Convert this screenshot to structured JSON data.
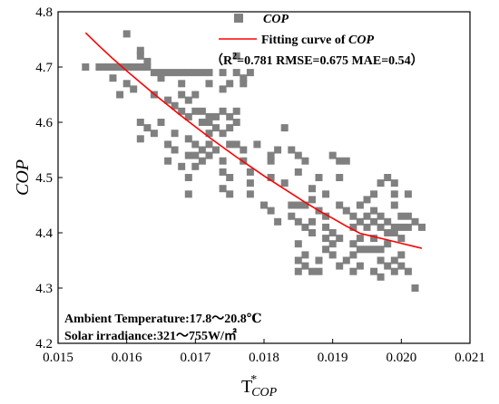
{
  "chart_data": {
    "type": "scatter",
    "xlim": [
      0.015,
      0.021
    ],
    "ylim": [
      4.2,
      4.8
    ],
    "xticks": [
      "0.015",
      "0.016",
      "0.017",
      "0.018",
      "0.019",
      "0.020",
      "0.021"
    ],
    "yticks": [
      "4.2",
      "4.3",
      "4.4",
      "4.5",
      "4.6",
      "4.7",
      "4.8"
    ],
    "xtick_values": [
      0.015,
      0.016,
      0.017,
      0.018,
      0.019,
      0.02,
      0.021
    ],
    "ytick_values": [
      4.2,
      4.3,
      4.4,
      4.5,
      4.6,
      4.7,
      4.8
    ],
    "ylabel": "COP",
    "xlabel": {
      "main": "T",
      "sup": "*",
      "sub": "COP"
    },
    "grid": false,
    "legend": {
      "position": "top-right",
      "scatter_label": "COP",
      "fit_label_prefix": "Fitting curve of ",
      "fit_label_italic": "COP",
      "metrics": {
        "open": "（R",
        "sup": "2",
        "rest": "=0.781  RMSE=0.675 MAE=0.54）"
      }
    },
    "annotations": [
      "Ambient Temperature:17.8～20.8℃",
      "Solar irradiance:321～755W/㎡"
    ],
    "colors": {
      "points": "#808080",
      "curve": "#ff0000"
    },
    "series": [
      {
        "name": "COP",
        "kind": "scatter",
        "points": [
          [
            0.0154,
            4.7
          ],
          [
            0.0156,
            4.7
          ],
          [
            0.0157,
            4.7
          ],
          [
            0.0158,
            4.7
          ],
          [
            0.0159,
            4.7
          ],
          [
            0.016,
            4.7
          ],
          [
            0.0161,
            4.7
          ],
          [
            0.0162,
            4.7
          ],
          [
            0.0163,
            4.7
          ],
          [
            0.0164,
            4.69
          ],
          [
            0.0165,
            4.69
          ],
          [
            0.0166,
            4.69
          ],
          [
            0.0167,
            4.69
          ],
          [
            0.0168,
            4.69
          ],
          [
            0.0169,
            4.69
          ],
          [
            0.017,
            4.69
          ],
          [
            0.0171,
            4.69
          ],
          [
            0.0172,
            4.69
          ],
          [
            0.0174,
            4.69
          ],
          [
            0.0176,
            4.69
          ],
          [
            0.0178,
            4.69
          ],
          [
            0.016,
            4.76
          ],
          [
            0.0162,
            4.73
          ],
          [
            0.0162,
            4.72
          ],
          [
            0.0163,
            4.71
          ],
          [
            0.0158,
            4.68
          ],
          [
            0.016,
            4.67
          ],
          [
            0.0161,
            4.66
          ],
          [
            0.0159,
            4.65
          ],
          [
            0.0165,
            4.68
          ],
          [
            0.0168,
            4.67
          ],
          [
            0.0176,
            4.72
          ],
          [
            0.0177,
            4.68
          ],
          [
            0.0177,
            4.67
          ],
          [
            0.0175,
            4.67
          ],
          [
            0.0172,
            4.67
          ],
          [
            0.0174,
            4.66
          ],
          [
            0.0164,
            4.65
          ],
          [
            0.0166,
            4.64
          ],
          [
            0.0168,
            4.65
          ],
          [
            0.0169,
            4.64
          ],
          [
            0.017,
            4.65
          ],
          [
            0.0167,
            4.63
          ],
          [
            0.0168,
            4.62
          ],
          [
            0.017,
            4.62
          ],
          [
            0.0171,
            4.62
          ],
          [
            0.0172,
            4.61
          ],
          [
            0.0173,
            4.61
          ],
          [
            0.0174,
            4.62
          ],
          [
            0.0175,
            4.61
          ],
          [
            0.0176,
            4.62
          ],
          [
            0.0176,
            4.6
          ],
          [
            0.0175,
            4.59
          ],
          [
            0.0172,
            4.6
          ],
          [
            0.0173,
            4.59
          ],
          [
            0.0169,
            4.61
          ],
          [
            0.0171,
            4.6
          ],
          [
            0.0172,
            4.58
          ],
          [
            0.0174,
            4.58
          ],
          [
            0.0162,
            4.6
          ],
          [
            0.0163,
            4.59
          ],
          [
            0.0165,
            4.6
          ],
          [
            0.0164,
            4.58
          ],
          [
            0.0162,
            4.57
          ],
          [
            0.0167,
            4.58
          ],
          [
            0.0169,
            4.57
          ],
          [
            0.017,
            4.56
          ],
          [
            0.0171,
            4.55
          ],
          [
            0.0172,
            4.56
          ],
          [
            0.0173,
            4.55
          ],
          [
            0.0169,
            4.54
          ],
          [
            0.017,
            4.54
          ],
          [
            0.0171,
            4.53
          ],
          [
            0.0172,
            4.54
          ],
          [
            0.017,
            4.52
          ],
          [
            0.0166,
            4.56
          ],
          [
            0.0166,
            4.53
          ],
          [
            0.0167,
            4.55
          ],
          [
            0.0168,
            4.52
          ],
          [
            0.0169,
            4.5
          ],
          [
            0.0169,
            4.47
          ],
          [
            0.0174,
            4.53
          ],
          [
            0.0175,
            4.56
          ],
          [
            0.0176,
            4.56
          ],
          [
            0.0177,
            4.55
          ],
          [
            0.0177,
            4.53
          ],
          [
            0.0174,
            4.51
          ],
          [
            0.0174,
            4.48
          ],
          [
            0.0175,
            4.47
          ],
          [
            0.0175,
            4.5
          ],
          [
            0.0178,
            4.51
          ],
          [
            0.0178,
            4.49
          ],
          [
            0.0178,
            4.47
          ],
          [
            0.0179,
            4.56
          ],
          [
            0.0181,
            4.54
          ],
          [
            0.0181,
            4.53
          ],
          [
            0.0182,
            4.55
          ],
          [
            0.0183,
            4.59
          ],
          [
            0.0184,
            4.55
          ],
          [
            0.0185,
            4.54
          ],
          [
            0.0181,
            4.5
          ],
          [
            0.0183,
            4.49
          ],
          [
            0.0185,
            4.51
          ],
          [
            0.0186,
            4.53
          ],
          [
            0.0184,
            4.45
          ],
          [
            0.0185,
            4.45
          ],
          [
            0.018,
            4.45
          ],
          [
            0.0181,
            4.44
          ],
          [
            0.0182,
            4.42
          ],
          [
            0.0184,
            4.43
          ],
          [
            0.0185,
            4.42
          ],
          [
            0.0186,
            4.41
          ],
          [
            0.0187,
            4.42
          ],
          [
            0.0187,
            4.4
          ],
          [
            0.0188,
            4.44
          ],
          [
            0.0186,
            4.45
          ],
          [
            0.0187,
            4.46
          ],
          [
            0.0187,
            4.48
          ],
          [
            0.0188,
            4.5
          ],
          [
            0.0189,
            4.47
          ],
          [
            0.019,
            4.54
          ],
          [
            0.0191,
            4.53
          ],
          [
            0.0191,
            4.5
          ],
          [
            0.0192,
            4.53
          ],
          [
            0.0191,
            4.45
          ],
          [
            0.0192,
            4.44
          ],
          [
            0.0193,
            4.43
          ],
          [
            0.0193,
            4.41
          ],
          [
            0.0194,
            4.42
          ],
          [
            0.0195,
            4.43
          ],
          [
            0.0196,
            4.44
          ],
          [
            0.0196,
            4.42
          ],
          [
            0.0197,
            4.43
          ],
          [
            0.0197,
            4.41
          ],
          [
            0.0198,
            4.42
          ],
          [
            0.0199,
            4.41
          ],
          [
            0.0198,
            4.4
          ],
          [
            0.0199,
            4.4
          ],
          [
            0.02,
            4.41
          ],
          [
            0.02,
            4.39
          ],
          [
            0.0201,
            4.43
          ],
          [
            0.0201,
            4.41
          ],
          [
            0.0202,
            4.42
          ],
          [
            0.0203,
            4.41
          ],
          [
            0.0189,
            4.43
          ],
          [
            0.0189,
            4.41
          ],
          [
            0.0189,
            4.39
          ],
          [
            0.019,
            4.4
          ],
          [
            0.019,
            4.38
          ],
          [
            0.0191,
            4.39
          ],
          [
            0.0193,
            4.38
          ],
          [
            0.0194,
            4.37
          ],
          [
            0.0195,
            4.37
          ],
          [
            0.0196,
            4.37
          ],
          [
            0.0197,
            4.37
          ],
          [
            0.0198,
            4.38
          ],
          [
            0.0196,
            4.39
          ],
          [
            0.0193,
            4.36
          ],
          [
            0.0194,
            4.39
          ],
          [
            0.0195,
            4.41
          ],
          [
            0.0197,
            4.49
          ],
          [
            0.0198,
            4.5
          ],
          [
            0.0199,
            4.49
          ],
          [
            0.0199,
            4.47
          ],
          [
            0.0196,
            4.47
          ],
          [
            0.0195,
            4.46
          ],
          [
            0.0201,
            4.47
          ],
          [
            0.0199,
            4.45
          ],
          [
            0.02,
            4.43
          ],
          [
            0.0194,
            4.45
          ],
          [
            0.0185,
            4.38
          ],
          [
            0.0186,
            4.36
          ],
          [
            0.0185,
            4.35
          ],
          [
            0.0186,
            4.34
          ],
          [
            0.0187,
            4.33
          ],
          [
            0.0185,
            4.33
          ],
          [
            0.0188,
            4.35
          ],
          [
            0.0188,
            4.33
          ],
          [
            0.0189,
            4.37
          ],
          [
            0.019,
            4.36
          ],
          [
            0.0191,
            4.34
          ],
          [
            0.0192,
            4.35
          ],
          [
            0.0193,
            4.33
          ],
          [
            0.0197,
            4.35
          ],
          [
            0.0198,
            4.34
          ],
          [
            0.0199,
            4.35
          ],
          [
            0.02,
            4.34
          ],
          [
            0.02,
            4.36
          ],
          [
            0.0199,
            4.33
          ],
          [
            0.0201,
            4.33
          ],
          [
            0.0202,
            4.3
          ],
          [
            0.0196,
            4.33
          ],
          [
            0.0194,
            4.34
          ],
          [
            0.0197,
            4.32
          ]
        ]
      },
      {
        "name": "Fitting curve of COP",
        "kind": "line",
        "points": [
          [
            0.0154,
            4.762
          ],
          [
            0.0156,
            4.738
          ],
          [
            0.0158,
            4.715
          ],
          [
            0.016,
            4.693
          ],
          [
            0.0162,
            4.672
          ],
          [
            0.0164,
            4.651
          ],
          [
            0.0166,
            4.631
          ],
          [
            0.0168,
            4.611
          ],
          [
            0.017,
            4.592
          ],
          [
            0.0172,
            4.573
          ],
          [
            0.0174,
            4.555
          ],
          [
            0.0176,
            4.537
          ],
          [
            0.0178,
            4.52
          ],
          [
            0.018,
            4.503
          ],
          [
            0.0182,
            4.487
          ],
          [
            0.0184,
            4.471
          ],
          [
            0.0186,
            4.455
          ],
          [
            0.0188,
            4.44
          ],
          [
            0.019,
            4.426
          ],
          [
            0.0192,
            4.412
          ],
          [
            0.0194,
            4.399
          ],
          [
            0.0196,
            4.393
          ],
          [
            0.0198,
            4.387
          ],
          [
            0.02,
            4.381
          ],
          [
            0.0202,
            4.375
          ],
          [
            0.0203,
            4.372
          ]
        ]
      }
    ]
  }
}
